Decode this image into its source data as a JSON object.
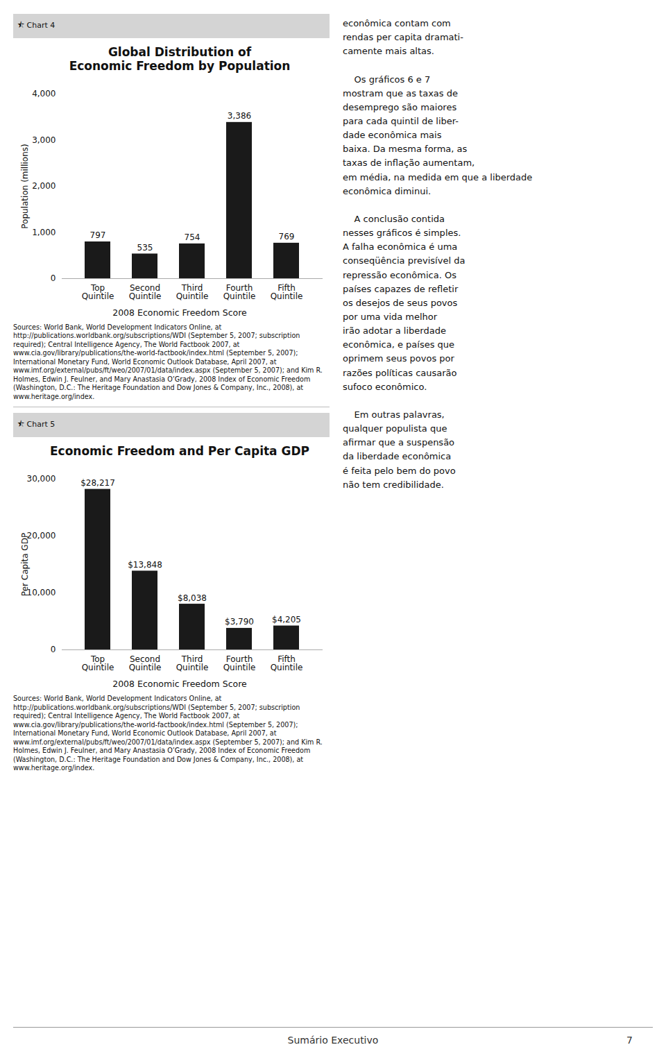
{
  "chart_data": [
    {
      "type": "bar",
      "title": "Global Distribution of\nEconomic Freedom by Population",
      "ylabel": "Population (millions)",
      "xlabel": "2008 Economic Freedom Score",
      "categories": [
        "Top\nQuintile",
        "Second\nQuintile",
        "Third\nQuintile",
        "Fourth\nQuintile",
        "Fifth\nQuintile"
      ],
      "values": [
        797,
        535,
        754,
        3386,
        769
      ],
      "value_labels": [
        "797",
        "535",
        "754",
        "3,386",
        "769"
      ],
      "data_labels": true,
      "color": "#1a1a1a",
      "ylim": [
        0,
        4000
      ],
      "yticks": [
        0,
        {
          "value": 1000,
          "label": "1,000"
        },
        {
          "value": 2000,
          "label": "2,000"
        },
        {
          "value": 3000,
          "label": "3,000"
        },
        {
          "value": 4000,
          "label": "4,000"
        }
      ],
      "grid": false,
      "annotations": [
        "⯪ Chart 4",
        "Sources: World Bank, World Development Indicators Online, at http://publications.worldbank.org/subscriptions/WDI (September 5, 2007; subscription required); Central Intelligence Agency, The World Factbook 2007, at www.cia.gov/library/publications/the-world-factbook/index.html (September 5, 2007); International Monetary Fund, World Economic Outlook Database, April 2007, at www.imf.org/external/pubs/ft/weo/2007/01/data/index.aspx (September 5, 2007); and Kim R. Holmes, Edwin J. Feulner, and Mary Anastasia O’Grady, 2008 Index of Economic Freedom (Washington, D.C.: The Heritage Foundation and Dow Jones & Company, Inc., 2008), at www.heritage.org/index."
      ]
    },
    {
      "type": "bar",
      "title": "Economic Freedom and Per Capita GDP",
      "ylabel": "Per Capita GDP",
      "xlabel": "2008 Economic Freedom Score",
      "categories": [
        "Top\nQuintile",
        "Second\nQuintile",
        "Third\nQuintile",
        "Fourth\nQuintile",
        "Fifth\nQuintile"
      ],
      "values": [
        28217,
        13848,
        8038,
        3790,
        4205
      ],
      "value_labels": [
        "$28,217",
        "$13,848",
        "$8,038",
        "$3,790",
        "$4,205"
      ],
      "data_labels": true,
      "color": "#1a1a1a",
      "ylim": [
        0,
        30000
      ],
      "yticks": [
        0,
        {
          "value": 10000,
          "label": "10,000"
        },
        {
          "value": 20000,
          "label": "20,000"
        },
        {
          "value": 30000,
          "label": "30,000"
        }
      ],
      "grid": false,
      "annotations": [
        "⯪ Chart 5",
        "Sources: World Bank, World Development Indicators Online, at http://publications.worldbank.org/subscriptions/WDI (September 5, 2007; subscription required); Central Intelligence Agency, The World Factbook 2007, at www.cia.gov/library/publications/the-world-factbook/index.html (September 5, 2007); International Monetary Fund, World Economic Outlook Database, April 2007, at www.imf.org/external/pubs/ft/weo/2007/01/data/index.aspx (September 5, 2007); and Kim R. Holmes, Edwin J. Feulner, and Mary Anastasia O’Grady, 2008 Index of Economic Freedom (Washington, D.C.: The Heritage Foundation and Dow Jones & Company, Inc., 2008), at www.heritage.org/index."
      ]
    }
  ],
  "annotations": [
    "econômica contam com\nrendas per capita dramati-\ncamente mais altas.\n\n    Os gráficos 6 e 7\nmostram que as taxas de\ndesemprego são maiores\npara cada quintil de liber-\ndade econômica mais\nbaixa. Da mesma forma, as\ntaxas de inflação aumentam,\nem média, na medida em que a liberdade\neconômica diminui.\n\n    A conclusão contida\nnesses gráficos é simples.\nA falha econômica é uma\nconseqüência previsível da\nrepressão econômica. Os\npaíses capazes de refletir\nos desejos de seus povos\npor uma vida melhor\nirão adotar a liberdade\neconômica, e países que\noprimem seus povos por\nrazões políticas causarão\nsufoco econômico.\n\n    Em outras palavras,\nqualquer populista que\nafirmar que a suspensão\nda liberdade econômica\né feita pelo bem do povo\nnão tem credibilidade.",
    "Sumário Executivo",
    "7"
  ]
}
